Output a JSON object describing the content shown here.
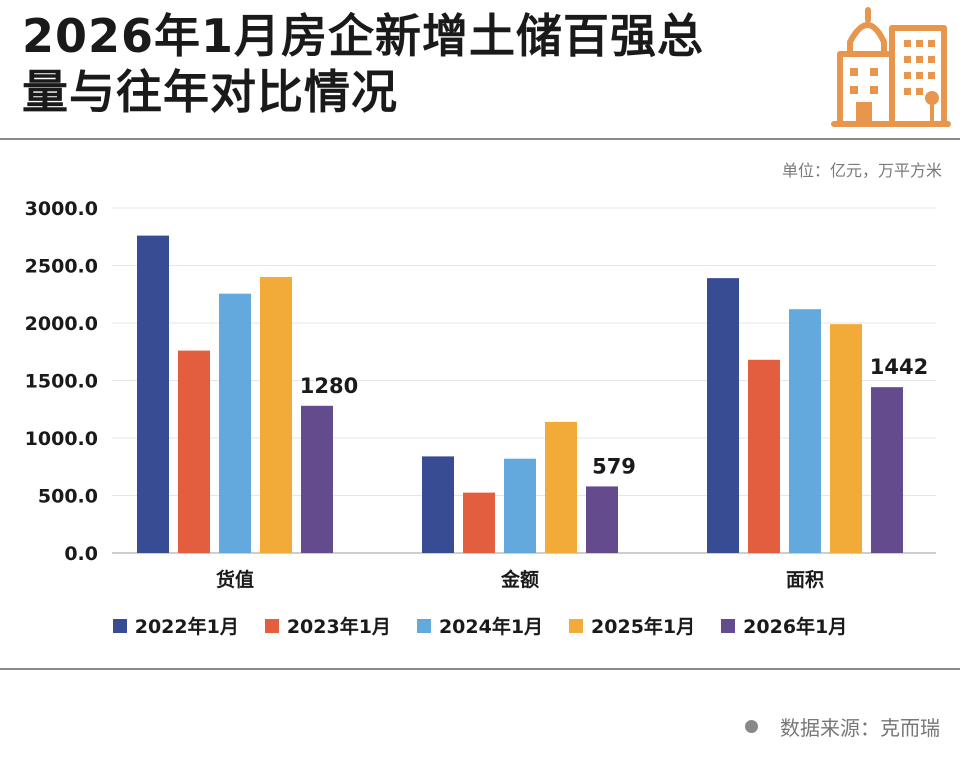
{
  "header": {
    "title_line1": "2026年1月房企新增土储百强总",
    "title_line2": "量与往年对比情况",
    "logo_icon": "building-icon"
  },
  "unit_note": "单位：亿元，万平方米",
  "source_note": "数据来源：克而瑞",
  "chart_data": {
    "type": "bar",
    "categories": [
      "货值",
      "金额",
      "面积"
    ],
    "series": [
      {
        "name": "2022年1月",
        "color": "#384C94",
        "values": [
          2760,
          840,
          2390
        ]
      },
      {
        "name": "2023年1月",
        "color": "#E25E3E",
        "values": [
          1760,
          525,
          1680
        ]
      },
      {
        "name": "2024年1月",
        "color": "#64A9DE",
        "values": [
          2255,
          820,
          2120
        ]
      },
      {
        "name": "2025年1月",
        "color": "#F2AA38",
        "values": [
          2400,
          1140,
          1990
        ]
      },
      {
        "name": "2026年1月",
        "color": "#634B8E",
        "values": [
          1280,
          579,
          1442
        ]
      }
    ],
    "data_labels": [
      {
        "category_index": 0,
        "series_index": 4,
        "text": "1280"
      },
      {
        "category_index": 1,
        "series_index": 4,
        "text": "579"
      },
      {
        "category_index": 2,
        "series_index": 4,
        "text": "1442"
      }
    ],
    "y_ticks": [
      "0.0",
      "500.0",
      "1000.0",
      "1500.0",
      "2000.0",
      "2500.0",
      "3000.0"
    ],
    "ylim": [
      0,
      3000
    ],
    "grid": true,
    "legend_position": "bottom"
  }
}
